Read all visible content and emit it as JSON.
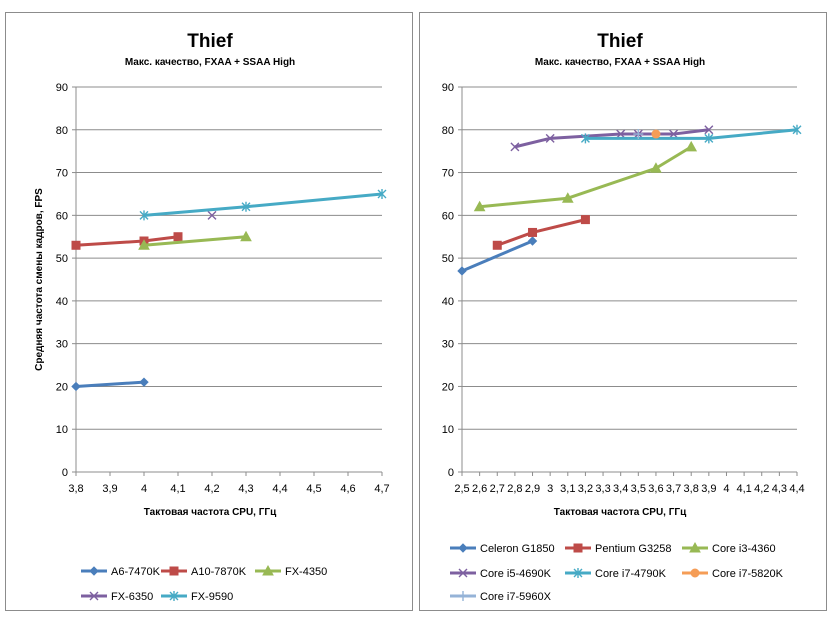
{
  "chart_data": [
    {
      "type": "line",
      "title": "Thief",
      "subtitle": "Макс. качество, FXAA + SSAA High",
      "xlabel": "Тактовая частота CPU, ГГц",
      "ylabel": "Средняя частота смены кадров, FPS",
      "ylim": [
        0,
        90
      ],
      "yticks": [
        0,
        10,
        20,
        30,
        40,
        50,
        60,
        70,
        80,
        90
      ],
      "xlim": [
        3.8,
        4.7
      ],
      "xticks": [
        3.8,
        3.9,
        4.0,
        4.1,
        4.2,
        4.3,
        4.4,
        4.5,
        4.6,
        4.7
      ],
      "xtick_labels": [
        "3,8",
        "3,9",
        "4",
        "4,1",
        "4,2",
        "4,3",
        "4,4",
        "4,5",
        "4,6",
        "4,7"
      ],
      "grid": "horizontal",
      "legend_position": "bottom",
      "series": [
        {
          "name": "A6-7470K",
          "color": "#4a7ebb",
          "marker": "diamond",
          "x": [
            3.8,
            4.0
          ],
          "y": [
            20,
            21
          ]
        },
        {
          "name": "A10-7870K",
          "color": "#be4b48",
          "marker": "square",
          "x": [
            3.8,
            4.0,
            4.1
          ],
          "y": [
            53,
            54,
            55
          ]
        },
        {
          "name": "FX-4350",
          "color": "#98b954",
          "marker": "triangle",
          "x": [
            4.0,
            4.3
          ],
          "y": [
            53,
            55
          ]
        },
        {
          "name": "FX-6350",
          "color": "#7d60a0",
          "marker": "x",
          "x": [
            4.2
          ],
          "y": [
            60
          ]
        },
        {
          "name": "FX-9590",
          "color": "#46aac5",
          "marker": "star",
          "x": [
            4.0,
            4.3,
            4.7
          ],
          "y": [
            60,
            62,
            65
          ]
        }
      ]
    },
    {
      "type": "line",
      "title": "Thief",
      "subtitle": "Макс. качество, FXAA + SSAA High",
      "xlabel": "Тактовая частота CPU, ГГц",
      "ylabel": "",
      "ylim": [
        0,
        90
      ],
      "yticks": [
        0,
        10,
        20,
        30,
        40,
        50,
        60,
        70,
        80,
        90
      ],
      "xlim": [
        2.5,
        4.4
      ],
      "xticks": [
        2.5,
        2.6,
        2.7,
        2.8,
        2.9,
        3.0,
        3.1,
        3.2,
        3.3,
        3.4,
        3.5,
        3.6,
        3.7,
        3.8,
        3.9,
        4.0,
        4.1,
        4.2,
        4.3,
        4.4
      ],
      "xtick_labels": [
        "2,5",
        "2,6",
        "2,7",
        "2,8",
        "2,9",
        "3",
        "3,1",
        "3,2",
        "3,3",
        "3,4",
        "3,5",
        "3,6",
        "3,7",
        "3,8",
        "3,9",
        "4",
        "4,1",
        "4,2",
        "4,3",
        "4,4"
      ],
      "grid": "horizontal",
      "legend_position": "bottom",
      "series": [
        {
          "name": "Celeron G1850",
          "color": "#4a7ebb",
          "marker": "diamond",
          "x": [
            2.5,
            2.9
          ],
          "y": [
            47,
            54
          ]
        },
        {
          "name": "Pentium G3258",
          "color": "#be4b48",
          "marker": "square",
          "x": [
            2.7,
            2.9,
            3.2
          ],
          "y": [
            53,
            56,
            59
          ]
        },
        {
          "name": "Core i3-4360",
          "color": "#98b954",
          "marker": "triangle",
          "x": [
            2.6,
            3.1,
            3.6,
            3.8
          ],
          "y": [
            62,
            64,
            71,
            76
          ]
        },
        {
          "name": "Core i5-4690K",
          "color": "#7d60a0",
          "marker": "x",
          "x": [
            2.8,
            3.0,
            3.4,
            3.5,
            3.7,
            3.9
          ],
          "y": [
            76,
            78,
            79,
            79,
            79,
            80
          ]
        },
        {
          "name": "Core i7-4790K",
          "color": "#46aac5",
          "marker": "star",
          "x": [
            3.2,
            3.9,
            4.4
          ],
          "y": [
            78,
            78,
            80
          ]
        },
        {
          "name": "Core i7-5820K",
          "color": "#f59d56",
          "marker": "circle",
          "x": [
            3.6
          ],
          "y": [
            79
          ]
        },
        {
          "name": "Core i7-5960X",
          "color": "#95b3d7",
          "marker": "plus",
          "x": [
            3.5
          ],
          "y": [
            79
          ]
        }
      ]
    }
  ]
}
